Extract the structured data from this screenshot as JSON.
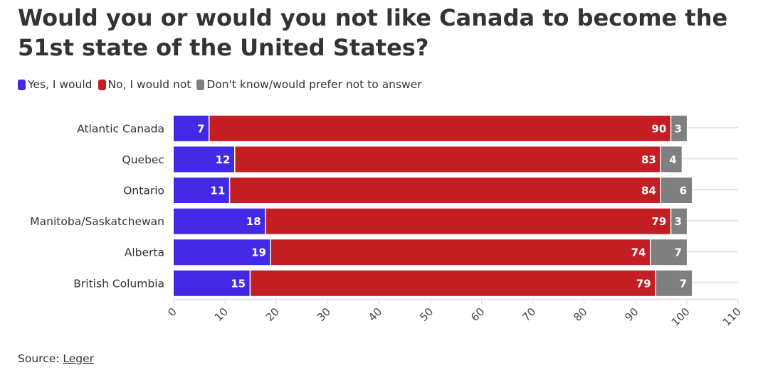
{
  "chart_data": {
    "type": "bar",
    "orientation": "horizontal",
    "stacked": true,
    "title": "Would you or would you not like Canada to become the 51st state of the United States?",
    "categories": [
      "Atlantic Canada",
      "Quebec",
      "Ontario",
      "Manitoba/Saskatchewan",
      "Alberta",
      "British Columbia"
    ],
    "series": [
      {
        "name": "Yes, I would",
        "color": "#4329e6",
        "values": [
          7,
          12,
          11,
          18,
          19,
          15
        ]
      },
      {
        "name": "No, I would not",
        "color": "#c21e23",
        "values": [
          90,
          83,
          84,
          79,
          74,
          79
        ]
      },
      {
        "name": "Don't know/would prefer not to answer",
        "color": "#7f7f7f",
        "values": [
          3,
          4,
          6,
          3,
          7,
          7
        ]
      }
    ],
    "xlim": [
      0,
      110
    ],
    "xticks": [
      0,
      10,
      20,
      30,
      40,
      50,
      60,
      70,
      80,
      90,
      100,
      110
    ],
    "xlabel": "",
    "ylabel": "",
    "grid": true,
    "legend_position": "top-left"
  },
  "source": {
    "label": "Source:",
    "link": "Leger"
  }
}
